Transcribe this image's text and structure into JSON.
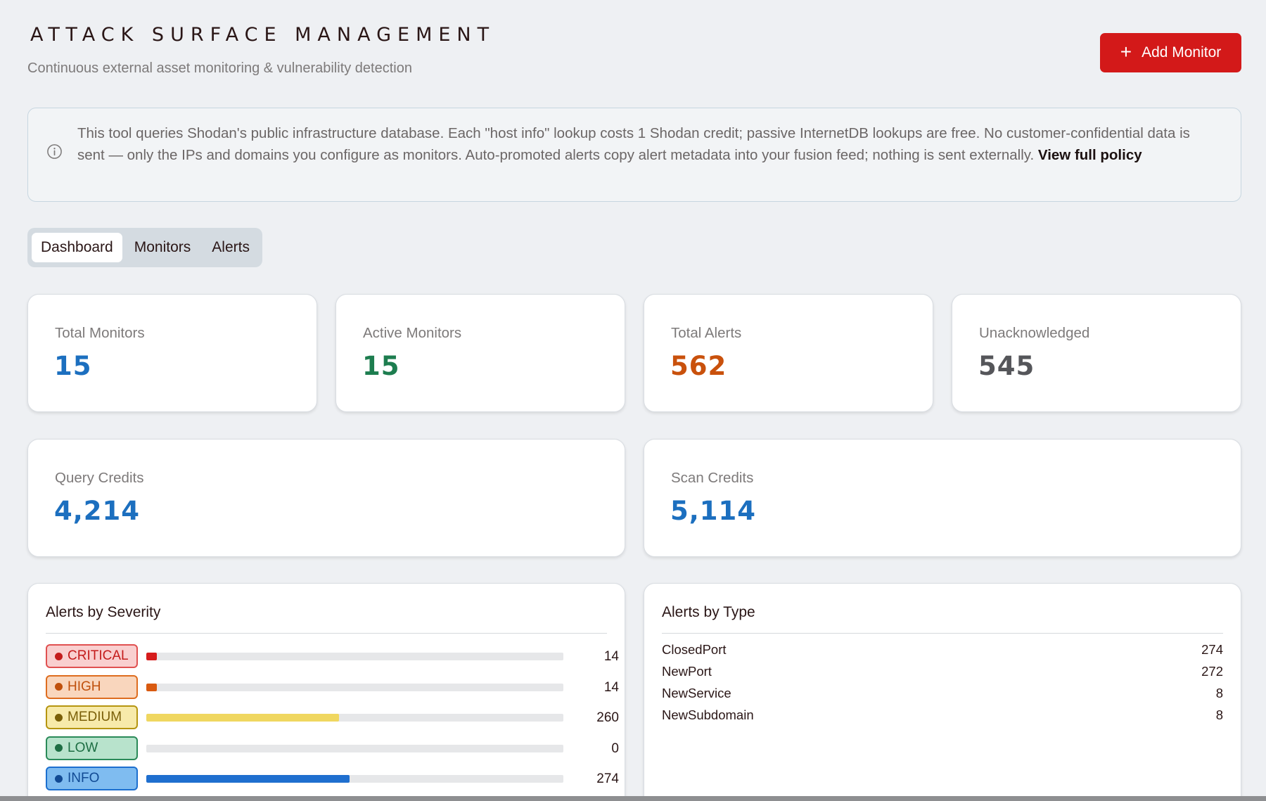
{
  "header": {
    "title": "Attack Surface Management",
    "subtitle": "Continuous external asset monitoring & vulnerability detection",
    "add_button_label": "Add Monitor"
  },
  "notice": {
    "text": "This tool queries Shodan's public infrastructure database. Each \"host info\" lookup costs 1 Shodan credit; passive InternetDB lookups are free. No customer-confidential data is sent — only the IPs and domains you configure as monitors. Auto-promoted alerts copy alert metadata into your fusion feed; nothing is sent externally.",
    "link_label": "View full policy"
  },
  "tabs": [
    {
      "label": "Dashboard",
      "active": true
    },
    {
      "label": "Monitors",
      "active": false
    },
    {
      "label": "Alerts",
      "active": false
    }
  ],
  "stats": [
    {
      "label": "Total Monitors",
      "value": "15",
      "color": "#1c6fbf"
    },
    {
      "label": "Active Monitors",
      "value": "15",
      "color": "#1d7d4f"
    },
    {
      "label": "Total Alerts",
      "value": "562",
      "color": "#c9510c"
    },
    {
      "label": "Unacknowledged",
      "value": "545",
      "color": "#55565a"
    }
  ],
  "credits": [
    {
      "label": "Query Credits",
      "value": "4,214",
      "color": "#1c6fbf"
    },
    {
      "label": "Scan Credits",
      "value": "5,114",
      "color": "#1c6fbf"
    }
  ],
  "severity_panel": {
    "title": "Alerts by Severity",
    "max": 562,
    "rows": [
      {
        "label": "CRITICAL",
        "count": 14,
        "bg": "#f9cfcf",
        "border": "#e05050",
        "text": "#c41c1c",
        "bar": "#d61c1c"
      },
      {
        "label": "HIGH",
        "count": 14,
        "bg": "#f9d6bd",
        "border": "#de6d1f",
        "text": "#c0500c",
        "bar": "#d95a10"
      },
      {
        "label": "MEDIUM",
        "count": 260,
        "bg": "#f7eaaa",
        "border": "#b59510",
        "text": "#7a5f08",
        "bar": "#f0d760"
      },
      {
        "label": "LOW",
        "count": 0,
        "bg": "#b8e3cc",
        "border": "#2a8a58",
        "text": "#1d6e43",
        "bar": "#2a8a58"
      },
      {
        "label": "INFO",
        "count": 274,
        "bg": "#7fbcf0",
        "border": "#1c6fcf",
        "text": "#114a94",
        "bar": "#1f6fcf"
      }
    ]
  },
  "type_panel": {
    "title": "Alerts by Type",
    "rows": [
      {
        "label": "ClosedPort",
        "count": "274"
      },
      {
        "label": "NewPort",
        "count": "272"
      },
      {
        "label": "NewService",
        "count": "8"
      },
      {
        "label": "NewSubdomain",
        "count": "8"
      }
    ]
  }
}
